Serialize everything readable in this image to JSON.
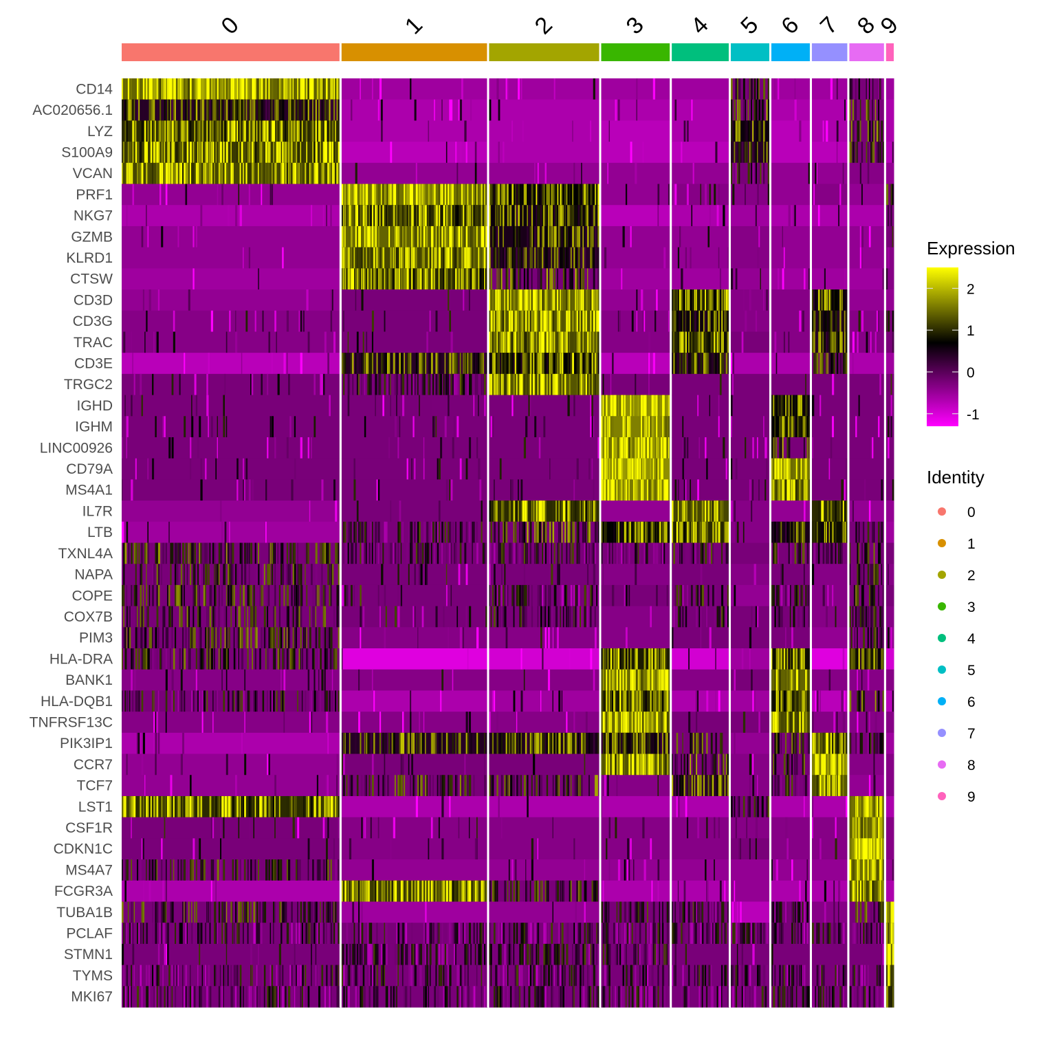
{
  "chart_data": {
    "type": "heatmap",
    "title": "",
    "xlabel": "",
    "ylabel": "",
    "clusters": [
      "0",
      "1",
      "2",
      "3",
      "4",
      "5",
      "6",
      "7",
      "8",
      "9"
    ],
    "cluster_cell_fraction": [
      0.283,
      0.189,
      0.143,
      0.089,
      0.074,
      0.05,
      0.05,
      0.046,
      0.045,
      0.01
    ],
    "cluster_colors": [
      "#F8766D",
      "#D89000",
      "#A3A500",
      "#39B600",
      "#00BF7D",
      "#00BFC4",
      "#00B0F6",
      "#9590FF",
      "#E76BF3",
      "#FF62BC"
    ],
    "genes": [
      "CD14",
      "AC020656.1",
      "LYZ",
      "S100A9",
      "VCAN",
      "PRF1",
      "NKG7",
      "GZMB",
      "KLRD1",
      "CTSW",
      "CD3D",
      "CD3G",
      "TRAC",
      "CD3E",
      "TRGC2",
      "IGHD",
      "IGHM",
      "LINC00926",
      "CD79A",
      "MS4A1",
      "IL7R",
      "LTB",
      "TXNL4A",
      "NAPA",
      "COPE",
      "COX7B",
      "PIM3",
      "HLA-DRA",
      "BANK1",
      "HLA-DQB1",
      "TNFRSF13C",
      "PIK3IP1",
      "CCR7",
      "TCF7",
      "LST1",
      "CSF1R",
      "CDKN1C",
      "MS4A7",
      "FCGR3A",
      "TUBA1B",
      "PCLAF",
      "STMN1",
      "TYMS",
      "MKI67"
    ],
    "mean_expression": [
      [
        2.0,
        -0.5,
        -0.5,
        -0.5,
        -0.5,
        0.6,
        -0.5,
        -0.5,
        0.2,
        -0.5
      ],
      [
        1.0,
        -0.6,
        -0.6,
        -0.6,
        -0.6,
        0.9,
        -0.6,
        -0.6,
        0.6,
        -0.6
      ],
      [
        1.6,
        -0.6,
        -0.6,
        -0.7,
        -0.6,
        1.2,
        -0.7,
        -0.6,
        0.7,
        -0.6
      ],
      [
        1.7,
        -0.7,
        -0.6,
        -0.7,
        -0.7,
        1.0,
        -0.7,
        -0.7,
        0.6,
        -0.7
      ],
      [
        1.8,
        -0.4,
        -0.4,
        -0.4,
        -0.4,
        0.2,
        -0.4,
        -0.4,
        -0.3,
        -0.4
      ],
      [
        -0.4,
        2.1,
        1.3,
        -0.4,
        -0.3,
        -0.3,
        -0.4,
        -0.3,
        -0.4,
        0.5
      ],
      [
        -0.6,
        1.6,
        1.2,
        -0.7,
        -0.6,
        -0.5,
        -0.6,
        -0.6,
        -0.6,
        0.5
      ],
      [
        -0.4,
        2.0,
        1.1,
        -0.4,
        -0.4,
        -0.3,
        -0.4,
        -0.4,
        -0.4,
        0.4
      ],
      [
        -0.4,
        1.8,
        1.0,
        -0.4,
        -0.4,
        -0.3,
        -0.4,
        -0.4,
        -0.4,
        -0.3
      ],
      [
        -0.5,
        1.6,
        0.9,
        -0.5,
        -0.5,
        -0.4,
        -0.5,
        -0.5,
        -0.5,
        -0.3
      ],
      [
        -0.4,
        -0.2,
        2.0,
        -0.4,
        1.5,
        -0.3,
        -0.3,
        1.2,
        -0.4,
        -0.4
      ],
      [
        -0.3,
        -0.1,
        1.9,
        -0.3,
        1.2,
        -0.3,
        -0.3,
        1.0,
        -0.3,
        0.5
      ],
      [
        -0.3,
        0.0,
        1.8,
        -0.3,
        1.5,
        -0.2,
        -0.3,
        1.0,
        -0.3,
        0.4
      ],
      [
        -0.7,
        1.0,
        1.3,
        -0.7,
        1.0,
        -0.6,
        -0.6,
        0.8,
        -0.6,
        -0.5
      ],
      [
        -0.2,
        0.3,
        1.9,
        -0.2,
        -0.2,
        -0.2,
        -0.2,
        -0.2,
        -0.2,
        -0.2
      ],
      [
        -0.2,
        -0.2,
        -0.2,
        2.3,
        -0.2,
        -0.1,
        1.2,
        -0.2,
        -0.2,
        -0.2
      ],
      [
        -0.2,
        -0.2,
        -0.2,
        2.2,
        -0.2,
        -0.1,
        1.3,
        -0.2,
        -0.2,
        0.2
      ],
      [
        -0.2,
        -0.2,
        -0.2,
        2.1,
        -0.2,
        -0.2,
        0.9,
        -0.2,
        -0.2,
        -0.2
      ],
      [
        -0.2,
        -0.2,
        -0.2,
        2.3,
        -0.2,
        -0.2,
        2.1,
        -0.2,
        -0.2,
        -0.2
      ],
      [
        -0.2,
        -0.2,
        -0.2,
        2.2,
        -0.2,
        -0.2,
        1.8,
        -0.2,
        -0.2,
        -0.2
      ],
      [
        -0.4,
        -0.2,
        1.6,
        -0.4,
        1.8,
        -0.3,
        -0.4,
        1.6,
        -0.4,
        -0.4
      ],
      [
        -0.5,
        0.2,
        0.9,
        1.3,
        1.6,
        -0.3,
        1.1,
        1.4,
        0.2,
        -0.5
      ],
      [
        0.7,
        0.2,
        0.2,
        0.1,
        0.3,
        -0.2,
        0.4,
        0.2,
        0.5,
        -0.2
      ],
      [
        0.5,
        -0.1,
        -0.1,
        -0.3,
        -0.1,
        -0.3,
        0.0,
        -0.3,
        0.4,
        -0.3
      ],
      [
        0.6,
        0.0,
        0.1,
        -0.2,
        0.3,
        -0.4,
        0.2,
        -0.3,
        0.6,
        -0.2
      ],
      [
        0.6,
        -0.1,
        0.3,
        -0.3,
        0.3,
        -0.2,
        0.1,
        -0.3,
        0.5,
        -0.3
      ],
      [
        0.7,
        -0.3,
        -0.3,
        -0.3,
        -0.2,
        -0.2,
        0.0,
        -0.4,
        0.4,
        -0.4
      ],
      [
        0.5,
        -1.0,
        -0.9,
        1.5,
        -0.9,
        -0.5,
        1.4,
        -1.0,
        1.2,
        -0.9
      ],
      [
        -0.3,
        -0.3,
        -0.3,
        2.1,
        -0.3,
        -0.2,
        2.0,
        -0.3,
        -0.3,
        -0.3
      ],
      [
        0.2,
        -0.6,
        -0.5,
        1.5,
        -0.6,
        -0.5,
        1.5,
        -0.7,
        0.8,
        -0.7
      ],
      [
        -0.3,
        -0.3,
        -0.3,
        2.1,
        -0.2,
        -0.2,
        1.8,
        -0.3,
        -0.3,
        -0.3
      ],
      [
        -0.6,
        1.0,
        1.1,
        1.1,
        0.8,
        -0.4,
        0.7,
        1.7,
        0.2,
        -0.5
      ],
      [
        -0.4,
        -0.2,
        -0.2,
        1.9,
        0.9,
        -0.3,
        0.7,
        2.2,
        -0.3,
        -0.3
      ],
      [
        -0.4,
        0.6,
        0.8,
        -0.3,
        1.0,
        -0.3,
        0.3,
        1.9,
        -0.4,
        -0.3
      ],
      [
        1.6,
        -0.6,
        -0.6,
        -0.6,
        -0.6,
        0.3,
        -0.6,
        -0.6,
        2.1,
        -0.6
      ],
      [
        -0.2,
        -0.3,
        -0.3,
        -0.3,
        -0.3,
        -0.3,
        -0.3,
        -0.3,
        2.0,
        -0.3
      ],
      [
        -0.1,
        -0.3,
        -0.3,
        -0.3,
        -0.3,
        -0.2,
        -0.3,
        -0.3,
        2.3,
        -0.3
      ],
      [
        0.5,
        -0.4,
        -0.4,
        -0.4,
        -0.4,
        -0.4,
        -0.4,
        -0.4,
        2.1,
        -0.4
      ],
      [
        -0.6,
        1.7,
        0.6,
        -0.6,
        -0.6,
        -0.4,
        -0.6,
        -0.6,
        1.8,
        -0.6
      ],
      [
        0.6,
        -0.5,
        -0.4,
        0.3,
        0.2,
        -0.7,
        0.1,
        -0.3,
        0.6,
        1.8
      ],
      [
        0.1,
        0.1,
        0.1,
        0.1,
        0.1,
        0.1,
        0.1,
        0.1,
        0.1,
        1.8
      ],
      [
        -0.2,
        0.1,
        0.2,
        0.1,
        -0.2,
        -0.2,
        -0.2,
        -0.2,
        -0.2,
        2.0
      ],
      [
        0.1,
        0.1,
        0.1,
        0.1,
        0.1,
        0.1,
        0.1,
        0.1,
        0.1,
        1.7
      ],
      [
        0.1,
        0.1,
        0.1,
        0.1,
        0.1,
        0.1,
        0.1,
        0.1,
        0.1,
        1.6
      ]
    ],
    "color_scale": {
      "title": "Expression",
      "stops": [
        {
          "value": -1.3,
          "color": "#FF00FF"
        },
        {
          "value": 0.7,
          "color": "#000000"
        },
        {
          "value": 2.5,
          "color": "#FFFF00"
        }
      ],
      "range": [
        -1.3,
        2.5
      ],
      "ticks": [
        2,
        1,
        0,
        -1
      ],
      "tick_labels": [
        "2",
        "1",
        "0",
        "-1"
      ]
    },
    "identity_legend": {
      "title": "Identity",
      "entries": [
        "0",
        "1",
        "2",
        "3",
        "4",
        "5",
        "6",
        "7",
        "8",
        "9"
      ]
    }
  }
}
